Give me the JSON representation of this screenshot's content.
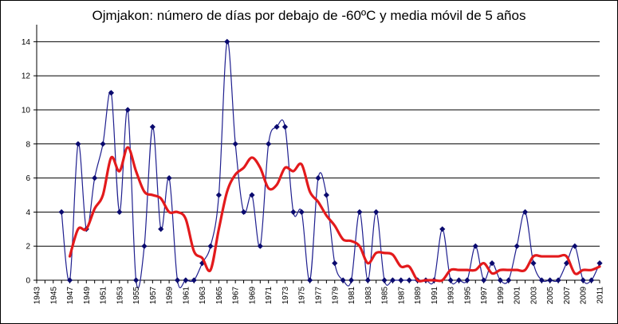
{
  "chart_data": {
    "type": "line",
    "title": "Ojmjakon: número de días  por debajo de -60ºC y media móvil de 5 años",
    "xlabel": "",
    "ylabel": "",
    "ylim": [
      0,
      15
    ],
    "xlim": [
      1943,
      2011
    ],
    "grid": true,
    "yticks": [
      0,
      2,
      4,
      6,
      8,
      10,
      12,
      14
    ],
    "xtick_labels": [
      "1943",
      "1945",
      "1947",
      "1949",
      "1951",
      "1953",
      "1955",
      "1957",
      "1959",
      "1961",
      "1963",
      "1965",
      "1967",
      "1969",
      "1971",
      "1973",
      "1975",
      "1977",
      "1979",
      "1981",
      "1983",
      "1985",
      "1987",
      "1989",
      "1991",
      "1993",
      "1995",
      "1997",
      "1999",
      "2001",
      "2003",
      "2005",
      "2007",
      "2009",
      "2011"
    ],
    "series": [
      {
        "name": "",
        "color": "#1f1f8f",
        "style": "line-with-diamond-markers",
        "x": [
          1946,
          1947,
          1948,
          1949,
          1950,
          1951,
          1952,
          1953,
          1954,
          1955,
          1956,
          1957,
          1958,
          1959,
          1960,
          1961,
          1962,
          1963,
          1964,
          1965,
          1966,
          1967,
          1968,
          1969,
          1970,
          1971,
          1972,
          1973,
          1974,
          1975,
          1976,
          1977,
          1978,
          1979,
          1980,
          1981,
          1982,
          1983,
          1984,
          1985,
          1986,
          1987,
          1988,
          1989,
          1990,
          1991,
          1992,
          1993,
          1994,
          1995,
          1996,
          1997,
          1998,
          1999,
          2000,
          2001,
          2002,
          2003,
          2004,
          2005,
          2006,
          2007,
          2008,
          2009,
          2010,
          2011
        ],
        "values": [
          4,
          0,
          8,
          3,
          6,
          8,
          11,
          4,
          10,
          0,
          2,
          9,
          3,
          6,
          0,
          0,
          0,
          1,
          2,
          5,
          14,
          8,
          4,
          5,
          2,
          8,
          9,
          9,
          4,
          4,
          0,
          6,
          5,
          1,
          0,
          0,
          4,
          0,
          4,
          0,
          0,
          0,
          0,
          0,
          0,
          0,
          3,
          0,
          0,
          0,
          2,
          0,
          1,
          0,
          0,
          2,
          4,
          1,
          0,
          0,
          0,
          1,
          2,
          0,
          0,
          1
        ]
      },
      {
        "name": "",
        "color": "#e31a1c",
        "style": "smooth-thick-line",
        "x": [
          1947,
          1948,
          1949,
          1950,
          1951,
          1952,
          1953,
          1954,
          1955,
          1956,
          1957,
          1958,
          1959,
          1960,
          1961,
          1962,
          1963,
          1964,
          1965,
          1966,
          1967,
          1968,
          1969,
          1970,
          1971,
          1972,
          1973,
          1974,
          1975,
          1976,
          1977,
          1978,
          1979,
          1980,
          1981,
          1982,
          1983,
          1984,
          1985,
          1986,
          1987,
          1988,
          1989,
          1990,
          1991,
          1992,
          1993,
          1994,
          1995,
          1996,
          1997,
          1998,
          1999,
          2000,
          2001,
          2002,
          2003,
          2004,
          2005,
          2006,
          2007,
          2008,
          2009,
          2010,
          2011
        ],
        "values": [
          1.4,
          3.0,
          3.0,
          4.2,
          5.0,
          7.2,
          6.4,
          7.8,
          6.4,
          5.2,
          5.0,
          4.8,
          4.0,
          4.0,
          3.6,
          1.7,
          1.3,
          0.6,
          3.0,
          5.2,
          6.2,
          6.6,
          7.2,
          6.6,
          5.4,
          5.6,
          6.6,
          6.4,
          6.8,
          5.2,
          4.6,
          3.8,
          3.2,
          2.4,
          2.3,
          2.0,
          1.0,
          1.6,
          1.6,
          1.5,
          0.8,
          0.8,
          0.0,
          0.0,
          0.0,
          0.0,
          0.6,
          0.6,
          0.6,
          0.6,
          1.0,
          0.4,
          0.6,
          0.6,
          0.6,
          0.6,
          1.4,
          1.4,
          1.4,
          1.4,
          1.4,
          0.4,
          0.6,
          0.6,
          0.8
        ]
      }
    ]
  }
}
